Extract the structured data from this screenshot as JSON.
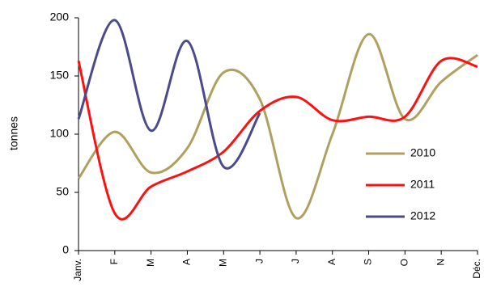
{
  "chart_data": {
    "type": "line",
    "y_label": "tonnes",
    "categories": [
      "Janv.",
      "F",
      "M",
      "A",
      "M",
      "J",
      "J",
      "A",
      "S",
      "O",
      "N",
      "Déc."
    ],
    "series": [
      {
        "name": "2010",
        "color": "#b0a060",
        "values": [
          62,
          102,
          67,
          88,
          153,
          130,
          28,
          100,
          186,
          113,
          145,
          168
        ]
      },
      {
        "name": "2011",
        "color": "#ff1010",
        "values": [
          163,
          32,
          55,
          68,
          85,
          120,
          132,
          112,
          115,
          115,
          163,
          158
        ]
      },
      {
        "name": "2012",
        "color": "#4a4a8c",
        "values": [
          113,
          198,
          103,
          180,
          72,
          118,
          null,
          null,
          null,
          null,
          null,
          null
        ]
      }
    ],
    "ylim": [
      0,
      200
    ],
    "yticks": [
      0,
      50,
      100,
      150,
      200
    ],
    "grid": false,
    "smooth": true,
    "legend": "right"
  }
}
